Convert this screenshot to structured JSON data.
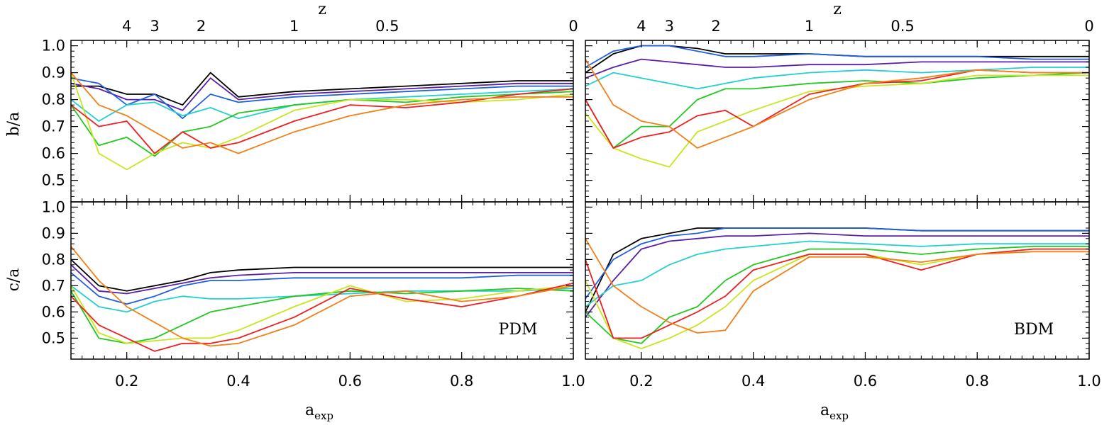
{
  "figure": {
    "top_axis_label": "z",
    "x_axis_label": "a",
    "x_axis_label_subscript": "exp",
    "y_axis_label_top": "b/a",
    "y_axis_label_bottom": "c/a",
    "x_tick_labels": [
      "0.2",
      "0.4",
      "0.6",
      "0.8",
      "1.0"
    ],
    "z_tick_labels": [
      "4",
      "3",
      "2",
      "1",
      "0.5",
      "0"
    ],
    "y_tick_labels_top": [
      "0.5",
      "0.6",
      "0.7",
      "0.8",
      "0.9",
      "1.0"
    ],
    "y_tick_labels_bottom": [
      "0.5",
      "0.6",
      "0.7",
      "0.8",
      "0.9",
      "1.0"
    ],
    "panel_labels": [
      "PDM",
      "BDM"
    ]
  },
  "chart_data": [
    {
      "type": "line",
      "panel": "PDM b/a",
      "xlabel": "a_exp",
      "ylabel": "b/a",
      "xlim": [
        0.1,
        1.0
      ],
      "ylim": [
        0.42,
        1.02
      ],
      "x": [
        0.1,
        0.15,
        0.2,
        0.25,
        0.3,
        0.35,
        0.4,
        0.5,
        0.6,
        0.7,
        0.8,
        0.9,
        1.0
      ],
      "series": [
        {
          "color": "#000000",
          "values": [
            0.85,
            0.85,
            0.82,
            0.82,
            0.78,
            0.9,
            0.81,
            0.83,
            0.84,
            0.85,
            0.86,
            0.87,
            0.87
          ]
        },
        {
          "color": "#5a1fa8",
          "values": [
            0.86,
            0.84,
            0.8,
            0.8,
            0.76,
            0.88,
            0.8,
            0.82,
            0.83,
            0.84,
            0.85,
            0.86,
            0.86
          ]
        },
        {
          "color": "#1f5fe0",
          "values": [
            0.88,
            0.86,
            0.78,
            0.82,
            0.73,
            0.82,
            0.79,
            0.81,
            0.82,
            0.83,
            0.84,
            0.85,
            0.85
          ]
        },
        {
          "color": "#22d0d0",
          "values": [
            0.8,
            0.72,
            0.78,
            0.79,
            0.74,
            0.77,
            0.73,
            0.78,
            0.8,
            0.81,
            0.82,
            0.83,
            0.84
          ]
        },
        {
          "color": "#22c822",
          "values": [
            0.78,
            0.63,
            0.66,
            0.59,
            0.68,
            0.7,
            0.75,
            0.78,
            0.8,
            0.79,
            0.81,
            0.82,
            0.83
          ]
        },
        {
          "color": "#c8e61e",
          "values": [
            0.9,
            0.6,
            0.54,
            0.6,
            0.64,
            0.62,
            0.66,
            0.76,
            0.8,
            0.8,
            0.79,
            0.8,
            0.82
          ]
        },
        {
          "color": "#ee2020",
          "values": [
            0.78,
            0.7,
            0.72,
            0.6,
            0.68,
            0.62,
            0.64,
            0.72,
            0.78,
            0.77,
            0.79,
            0.82,
            0.84
          ]
        },
        {
          "color": "#f28019",
          "values": [
            0.9,
            0.78,
            0.74,
            0.68,
            0.62,
            0.64,
            0.6,
            0.68,
            0.74,
            0.78,
            0.8,
            0.81,
            0.81
          ]
        }
      ]
    },
    {
      "type": "line",
      "panel": "PDM c/a",
      "xlabel": "a_exp",
      "ylabel": "c/a",
      "xlim": [
        0.1,
        1.0
      ],
      "ylim": [
        0.42,
        1.02
      ],
      "x": [
        0.1,
        0.15,
        0.2,
        0.25,
        0.3,
        0.35,
        0.4,
        0.5,
        0.6,
        0.7,
        0.8,
        0.9,
        1.0
      ],
      "series": [
        {
          "color": "#000000",
          "values": [
            0.8,
            0.7,
            0.68,
            0.7,
            0.72,
            0.75,
            0.76,
            0.77,
            0.77,
            0.77,
            0.77,
            0.77,
            0.77
          ]
        },
        {
          "color": "#5a1fa8",
          "values": [
            0.78,
            0.68,
            0.67,
            0.69,
            0.71,
            0.73,
            0.74,
            0.75,
            0.75,
            0.75,
            0.75,
            0.75,
            0.75
          ]
        },
        {
          "color": "#1f5fe0",
          "values": [
            0.75,
            0.66,
            0.63,
            0.66,
            0.7,
            0.72,
            0.72,
            0.73,
            0.73,
            0.73,
            0.73,
            0.74,
            0.74
          ]
        },
        {
          "color": "#22d0d0",
          "values": [
            0.7,
            0.62,
            0.6,
            0.64,
            0.66,
            0.65,
            0.65,
            0.66,
            0.67,
            0.68,
            0.68,
            0.68,
            0.69
          ]
        },
        {
          "color": "#22c822",
          "values": [
            0.68,
            0.5,
            0.48,
            0.5,
            0.55,
            0.6,
            0.62,
            0.66,
            0.68,
            0.67,
            0.68,
            0.69,
            0.68
          ]
        },
        {
          "color": "#c8e61e",
          "values": [
            0.7,
            0.52,
            0.48,
            0.49,
            0.5,
            0.5,
            0.53,
            0.62,
            0.7,
            0.64,
            0.65,
            0.68,
            0.7
          ]
        },
        {
          "color": "#ee2020",
          "values": [
            0.66,
            0.55,
            0.5,
            0.45,
            0.48,
            0.48,
            0.5,
            0.58,
            0.69,
            0.65,
            0.62,
            0.66,
            0.71
          ]
        },
        {
          "color": "#f28019",
          "values": [
            0.85,
            0.72,
            0.62,
            0.56,
            0.5,
            0.47,
            0.48,
            0.55,
            0.66,
            0.68,
            0.64,
            0.66,
            0.7
          ]
        }
      ]
    },
    {
      "type": "line",
      "panel": "BDM b/a",
      "xlabel": "a_exp",
      "ylabel": "b/a",
      "xlim": [
        0.1,
        1.0
      ],
      "ylim": [
        0.42,
        1.02
      ],
      "x": [
        0.1,
        0.15,
        0.2,
        0.25,
        0.3,
        0.35,
        0.4,
        0.5,
        0.6,
        0.7,
        0.8,
        0.9,
        1.0
      ],
      "series": [
        {
          "color": "#000000",
          "values": [
            0.9,
            0.97,
            1.0,
            1.0,
            0.99,
            0.97,
            0.97,
            0.97,
            0.96,
            0.96,
            0.96,
            0.96,
            0.96
          ]
        },
        {
          "color": "#5a1fa8",
          "values": [
            0.88,
            0.92,
            0.95,
            0.94,
            0.93,
            0.92,
            0.92,
            0.93,
            0.93,
            0.94,
            0.94,
            0.94,
            0.94
          ]
        },
        {
          "color": "#1f5fe0",
          "values": [
            0.92,
            0.98,
            1.0,
            1.0,
            0.98,
            0.96,
            0.96,
            0.97,
            0.96,
            0.96,
            0.96,
            0.95,
            0.95
          ]
        },
        {
          "color": "#22d0d0",
          "values": [
            0.85,
            0.9,
            0.88,
            0.86,
            0.84,
            0.86,
            0.88,
            0.9,
            0.91,
            0.9,
            0.91,
            0.92,
            0.92
          ]
        },
        {
          "color": "#22c822",
          "values": [
            0.8,
            0.62,
            0.7,
            0.7,
            0.8,
            0.84,
            0.84,
            0.86,
            0.87,
            0.86,
            0.88,
            0.89,
            0.9
          ]
        },
        {
          "color": "#c8e61e",
          "values": [
            0.75,
            0.62,
            0.58,
            0.55,
            0.68,
            0.72,
            0.76,
            0.83,
            0.85,
            0.86,
            0.89,
            0.89,
            0.89
          ]
        },
        {
          "color": "#ee2020",
          "values": [
            0.8,
            0.62,
            0.66,
            0.68,
            0.74,
            0.76,
            0.7,
            0.82,
            0.86,
            0.87,
            0.91,
            0.9,
            0.9
          ]
        },
        {
          "color": "#f28019",
          "values": [
            0.95,
            0.78,
            0.72,
            0.7,
            0.62,
            0.66,
            0.7,
            0.8,
            0.86,
            0.88,
            0.91,
            0.9,
            0.9
          ]
        }
      ]
    },
    {
      "type": "line",
      "panel": "BDM c/a",
      "xlabel": "a_exp",
      "ylabel": "c/a",
      "xlim": [
        0.1,
        1.0
      ],
      "ylim": [
        0.42,
        1.02
      ],
      "x": [
        0.1,
        0.15,
        0.2,
        0.25,
        0.3,
        0.35,
        0.4,
        0.5,
        0.6,
        0.7,
        0.8,
        0.9,
        1.0
      ],
      "series": [
        {
          "color": "#000000",
          "values": [
            0.6,
            0.82,
            0.88,
            0.9,
            0.92,
            0.92,
            0.92,
            0.92,
            0.92,
            0.91,
            0.91,
            0.91,
            0.91
          ]
        },
        {
          "color": "#5a1fa8",
          "values": [
            0.58,
            0.72,
            0.84,
            0.87,
            0.88,
            0.89,
            0.89,
            0.9,
            0.89,
            0.89,
            0.89,
            0.89,
            0.89
          ]
        },
        {
          "color": "#1f5fe0",
          "values": [
            0.65,
            0.8,
            0.86,
            0.89,
            0.9,
            0.92,
            0.92,
            0.92,
            0.92,
            0.91,
            0.91,
            0.91,
            0.91
          ]
        },
        {
          "color": "#22d0d0",
          "values": [
            0.62,
            0.7,
            0.72,
            0.78,
            0.82,
            0.84,
            0.85,
            0.87,
            0.86,
            0.85,
            0.86,
            0.86,
            0.86
          ]
        },
        {
          "color": "#22c822",
          "values": [
            0.6,
            0.5,
            0.48,
            0.58,
            0.62,
            0.72,
            0.78,
            0.84,
            0.84,
            0.82,
            0.84,
            0.85,
            0.85
          ]
        },
        {
          "color": "#c8e61e",
          "values": [
            0.72,
            0.5,
            0.46,
            0.5,
            0.55,
            0.62,
            0.72,
            0.82,
            0.82,
            0.78,
            0.82,
            0.84,
            0.84
          ]
        },
        {
          "color": "#ee2020",
          "values": [
            0.8,
            0.5,
            0.5,
            0.55,
            0.6,
            0.66,
            0.76,
            0.82,
            0.82,
            0.76,
            0.82,
            0.84,
            0.84
          ]
        },
        {
          "color": "#f28019",
          "values": [
            0.88,
            0.7,
            0.62,
            0.56,
            0.52,
            0.53,
            0.68,
            0.81,
            0.81,
            0.79,
            0.82,
            0.83,
            0.83
          ]
        }
      ]
    }
  ]
}
